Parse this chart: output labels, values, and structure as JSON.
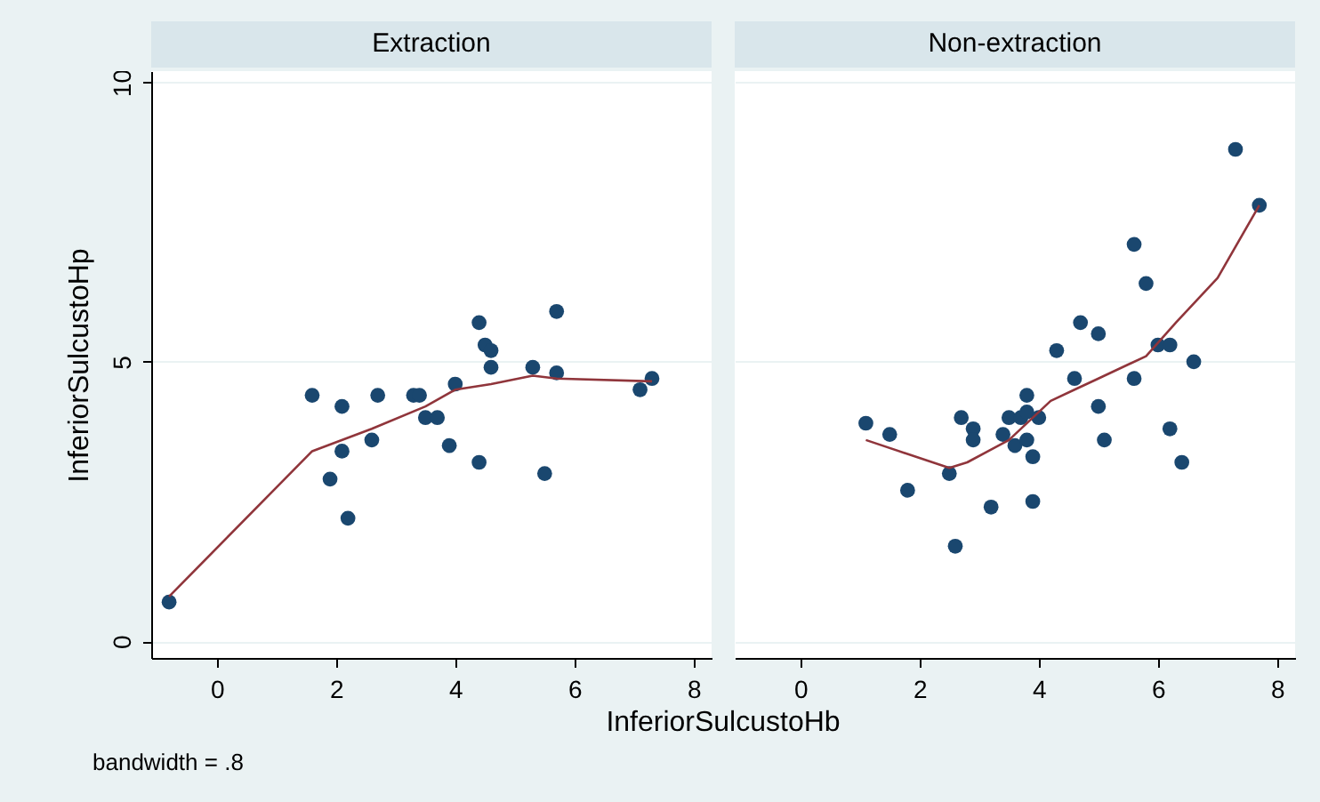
{
  "chart_data": [
    {
      "type": "scatter",
      "title": "Extraction",
      "ylabel": "InferiorSulcustoHp",
      "annotations": [
        "bandwidth = .8"
      ],
      "xlim": [
        -1.1,
        8.3
      ],
      "ylim": [
        -0.3,
        10.2
      ],
      "xticks": [
        0,
        2,
        4,
        6,
        8
      ],
      "yticks": [
        0,
        5,
        10
      ],
      "grid": "y",
      "series": [
        {
          "marker": "circle",
          "color": "#1a476f",
          "x": [
            -0.8,
            1.6,
            1.9,
            2.1,
            2.1,
            2.2,
            2.6,
            2.7,
            3.3,
            3.4,
            3.5,
            3.7,
            3.9,
            4.0,
            4.4,
            4.5,
            4.6,
            4.6,
            4.4,
            5.3,
            5.7,
            5.7,
            5.5,
            7.1,
            7.3
          ],
          "values": [
            0.7,
            4.4,
            2.9,
            4.2,
            3.4,
            2.2,
            3.6,
            4.4,
            4.4,
            4.4,
            4.0,
            4.0,
            3.5,
            4.6,
            5.7,
            5.3,
            5.2,
            4.9,
            3.2,
            4.9,
            5.9,
            4.8,
            3.0,
            4.5,
            4.7
          ]
        },
        {
          "type": "line",
          "color": "#90353b",
          "x": [
            -0.8,
            1.6,
            2.6,
            3.5,
            4.0,
            4.6,
            5.3,
            5.7,
            7.3
          ],
          "values": [
            0.8,
            3.4,
            3.8,
            4.2,
            4.5,
            4.6,
            4.75,
            4.7,
            4.65
          ]
        }
      ]
    },
    {
      "type": "scatter",
      "title": "Non-extraction",
      "xlabel": "InferiorSulcustoHb",
      "xlim": [
        -1.1,
        8.3
      ],
      "ylim": [
        -0.3,
        10.2
      ],
      "xticks": [
        0,
        2,
        4,
        6,
        8
      ],
      "yticks": [
        0,
        5,
        10
      ],
      "grid": "y",
      "tick_labels": "x",
      "series": [
        {
          "marker": "circle",
          "color": "#1a476f",
          "x": [
            1.1,
            1.5,
            1.8,
            2.5,
            2.6,
            2.7,
            2.9,
            2.9,
            3.2,
            3.4,
            3.5,
            3.6,
            3.7,
            3.8,
            3.8,
            3.8,
            3.9,
            3.9,
            4.0,
            4.3,
            4.6,
            4.7,
            5.0,
            5.0,
            5.1,
            5.6,
            5.6,
            5.8,
            6.0,
            6.2,
            6.2,
            6.4,
            6.6,
            7.3,
            7.7
          ],
          "values": [
            3.9,
            3.7,
            2.7,
            3.0,
            1.7,
            4.0,
            3.8,
            3.6,
            2.4,
            3.7,
            4.0,
            3.5,
            4.0,
            4.1,
            4.4,
            3.6,
            3.3,
            2.5,
            4.0,
            5.2,
            4.7,
            5.7,
            5.5,
            4.2,
            3.6,
            7.1,
            4.7,
            6.4,
            5.3,
            5.3,
            3.8,
            3.2,
            5.0,
            8.8,
            7.8
          ]
        },
        {
          "type": "line",
          "color": "#90353b",
          "x": [
            1.1,
            2.5,
            2.8,
            3.5,
            4.2,
            4.6,
            5.0,
            5.8,
            6.3,
            7.0,
            7.7
          ],
          "values": [
            3.6,
            3.1,
            3.2,
            3.6,
            4.3,
            4.5,
            4.7,
            5.1,
            5.7,
            6.5,
            7.8
          ]
        }
      ]
    }
  ]
}
